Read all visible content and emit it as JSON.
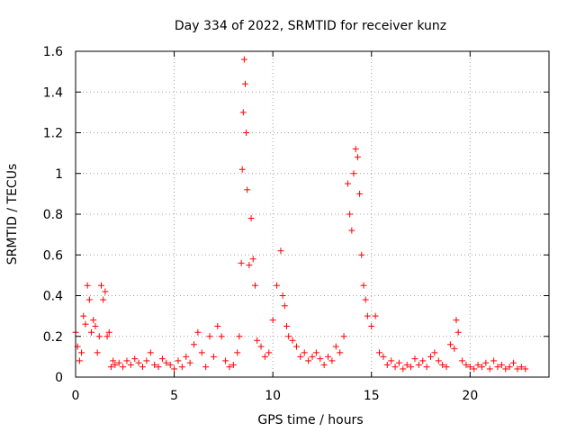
{
  "chart_data": {
    "type": "scatter",
    "title": "Day 334 of 2022, SRMTID for receiver kunz",
    "xlabel": "GPS time / hours",
    "ylabel": "SRMTID / TECUs",
    "xlim": [
      0,
      24
    ],
    "ylim": [
      0,
      1.6
    ],
    "xticks": [
      0,
      5,
      10,
      15,
      20
    ],
    "yticks": [
      0,
      0.2,
      0.4,
      0.6,
      0.8,
      1,
      1.2,
      1.4,
      1.6
    ],
    "xtick_labels": [
      "0",
      "5",
      "10",
      "15",
      "20"
    ],
    "ytick_labels": [
      "0",
      "0.2",
      "0.4",
      "0.6",
      "0.8",
      "1",
      "1.2",
      "1.4",
      "1.6"
    ],
    "grid": true,
    "marker": "+",
    "color": "#ff0000",
    "series": [
      {
        "name": "SRMTID",
        "x": [
          0.0,
          0.1,
          0.2,
          0.3,
          0.4,
          0.5,
          0.6,
          0.7,
          0.8,
          0.9,
          1.0,
          1.1,
          1.2,
          1.3,
          1.4,
          1.5,
          1.6,
          1.7,
          1.8,
          1.9,
          2.0,
          2.2,
          2.4,
          2.6,
          2.8,
          3.0,
          3.2,
          3.4,
          3.6,
          3.8,
          4.0,
          4.2,
          4.4,
          4.6,
          4.8,
          5.0,
          5.2,
          5.4,
          5.6,
          5.8,
          6.0,
          6.2,
          6.4,
          6.6,
          6.8,
          7.0,
          7.2,
          7.4,
          7.6,
          7.8,
          8.0,
          8.2,
          8.3,
          8.4,
          8.45,
          8.5,
          8.55,
          8.6,
          8.65,
          8.7,
          8.8,
          8.9,
          9.0,
          9.1,
          9.2,
          9.4,
          9.6,
          9.8,
          10.0,
          10.2,
          10.4,
          10.5,
          10.6,
          10.7,
          10.8,
          11.0,
          11.2,
          11.4,
          11.6,
          11.8,
          12.0,
          12.2,
          12.4,
          12.6,
          12.8,
          13.0,
          13.2,
          13.4,
          13.6,
          13.8,
          13.9,
          14.0,
          14.1,
          14.2,
          14.3,
          14.4,
          14.5,
          14.6,
          14.7,
          14.8,
          15.0,
          15.2,
          15.4,
          15.6,
          15.8,
          16.0,
          16.2,
          16.4,
          16.6,
          16.8,
          17.0,
          17.2,
          17.4,
          17.6,
          17.8,
          18.0,
          18.2,
          18.4,
          18.6,
          18.8,
          19.0,
          19.2,
          19.3,
          19.4,
          19.6,
          19.8,
          20.0,
          20.2,
          20.4,
          20.6,
          20.8,
          21.0,
          21.2,
          21.4,
          21.6,
          21.8,
          22.0,
          22.2,
          22.4,
          22.6,
          22.8
        ],
        "y": [
          0.22,
          0.15,
          0.08,
          0.12,
          0.3,
          0.26,
          0.45,
          0.38,
          0.22,
          0.28,
          0.25,
          0.12,
          0.2,
          0.45,
          0.38,
          0.42,
          0.2,
          0.22,
          0.05,
          0.08,
          0.06,
          0.07,
          0.05,
          0.08,
          0.06,
          0.09,
          0.07,
          0.05,
          0.08,
          0.12,
          0.06,
          0.05,
          0.09,
          0.07,
          0.06,
          0.04,
          0.08,
          0.05,
          0.1,
          0.07,
          0.16,
          0.22,
          0.12,
          0.05,
          0.2,
          0.1,
          0.25,
          0.2,
          0.08,
          0.05,
          0.06,
          0.12,
          0.2,
          0.56,
          1.02,
          1.3,
          1.56,
          1.44,
          1.2,
          0.92,
          0.55,
          0.78,
          0.58,
          0.45,
          0.18,
          0.15,
          0.1,
          0.12,
          0.28,
          0.45,
          0.62,
          0.4,
          0.35,
          0.25,
          0.2,
          0.18,
          0.15,
          0.1,
          0.12,
          0.08,
          0.1,
          0.12,
          0.09,
          0.06,
          0.1,
          0.08,
          0.15,
          0.12,
          0.2,
          0.95,
          0.8,
          0.72,
          1.0,
          1.12,
          1.08,
          0.9,
          0.6,
          0.45,
          0.38,
          0.3,
          0.25,
          0.3,
          0.12,
          0.1,
          0.06,
          0.08,
          0.05,
          0.07,
          0.04,
          0.06,
          0.05,
          0.09,
          0.06,
          0.08,
          0.05,
          0.1,
          0.12,
          0.08,
          0.06,
          0.05,
          0.16,
          0.14,
          0.28,
          0.22,
          0.08,
          0.06,
          0.05,
          0.04,
          0.06,
          0.05,
          0.07,
          0.04,
          0.08,
          0.05,
          0.06,
          0.04,
          0.05,
          0.07,
          0.04,
          0.05,
          0.04
        ]
      }
    ]
  }
}
